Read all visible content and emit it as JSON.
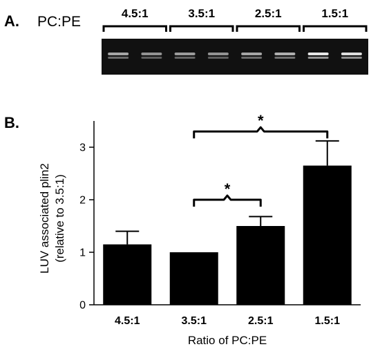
{
  "panel_a": {
    "label": "A.",
    "header": "PC:PE",
    "lane_groups": [
      "4.5:1",
      "3.5:1",
      "2.5:1",
      "1.5:1"
    ],
    "band_intensity": [
      0.55,
      0.45,
      0.5,
      0.45,
      0.55,
      0.6,
      0.9,
      0.85
    ]
  },
  "panel_b": {
    "label": "B."
  },
  "chart_data": {
    "type": "bar",
    "categories": [
      "4.5:1",
      "3.5:1",
      "2.5:1",
      "1.5:1"
    ],
    "values": [
      1.15,
      1.0,
      1.5,
      2.65
    ],
    "errors": [
      0.25,
      0.0,
      0.18,
      0.47
    ],
    "xlabel": "Ratio of PC:PE",
    "ylabel": "LUV associated plin2",
    "ylabel2": "(relative to 3.5:1)",
    "ylim": [
      0,
      3.5
    ],
    "yticks": [
      0,
      1,
      2,
      3
    ],
    "bar_color": "#000000",
    "significance": [
      {
        "from": 1,
        "to": 2,
        "label": "*",
        "level": 2.0
      },
      {
        "from": 1,
        "to": 3,
        "label": "*",
        "level": 3.3
      }
    ]
  }
}
